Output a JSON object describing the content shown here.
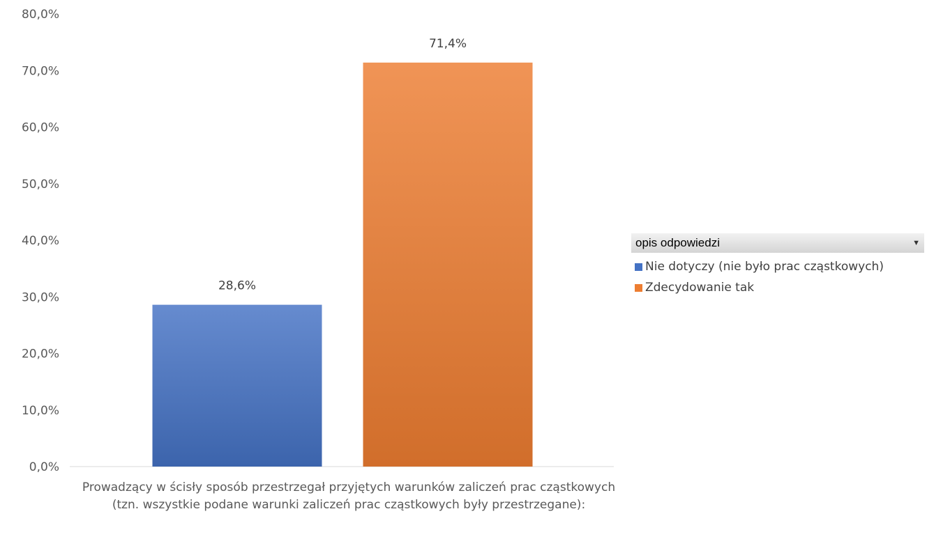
{
  "chart_data": {
    "type": "bar",
    "categories": [
      "Prowadzący w ścisły sposób przestrzegał przyjętych warunków zaliczeń prac cząstkowych (tzn. wszystkie podane warunki zaliczeń prac cząstkowych były przestrzegane):"
    ],
    "series": [
      {
        "name": "Nie dotyczy (nie było prac cząstkowych)",
        "values": [
          28.6
        ],
        "label": "28,6%",
        "color": "#4472c4"
      },
      {
        "name": "Zdecydowanie tak",
        "values": [
          71.4
        ],
        "label": "71,4%",
        "color": "#ed7d31"
      }
    ],
    "ylim": [
      0,
      80
    ],
    "yticks": [
      0,
      10,
      20,
      30,
      40,
      50,
      60,
      70,
      80
    ],
    "ytick_labels": [
      "0,0%",
      "10,0%",
      "20,0%",
      "30,0%",
      "40,0%",
      "50,0%",
      "60,0%",
      "70,0%",
      "80,0%"
    ],
    "grid": false,
    "legend_placement": "right"
  },
  "legend": {
    "title": "opis odpowiedzi",
    "items": [
      {
        "label": "Nie dotyczy (nie było prac cząstkowych)",
        "color": "#4472c4"
      },
      {
        "label": "Zdecydowanie tak",
        "color": "#ed7d31"
      }
    ],
    "dropdown_icon": "chevron-down-icon"
  },
  "category_label": "Prowadzący w ścisły sposób przestrzegał przyjętych warunków zaliczeń prac cząstkowych (tzn. wszystkie podane warunki zaliczeń prac cząstkowych były przestrzegane):"
}
